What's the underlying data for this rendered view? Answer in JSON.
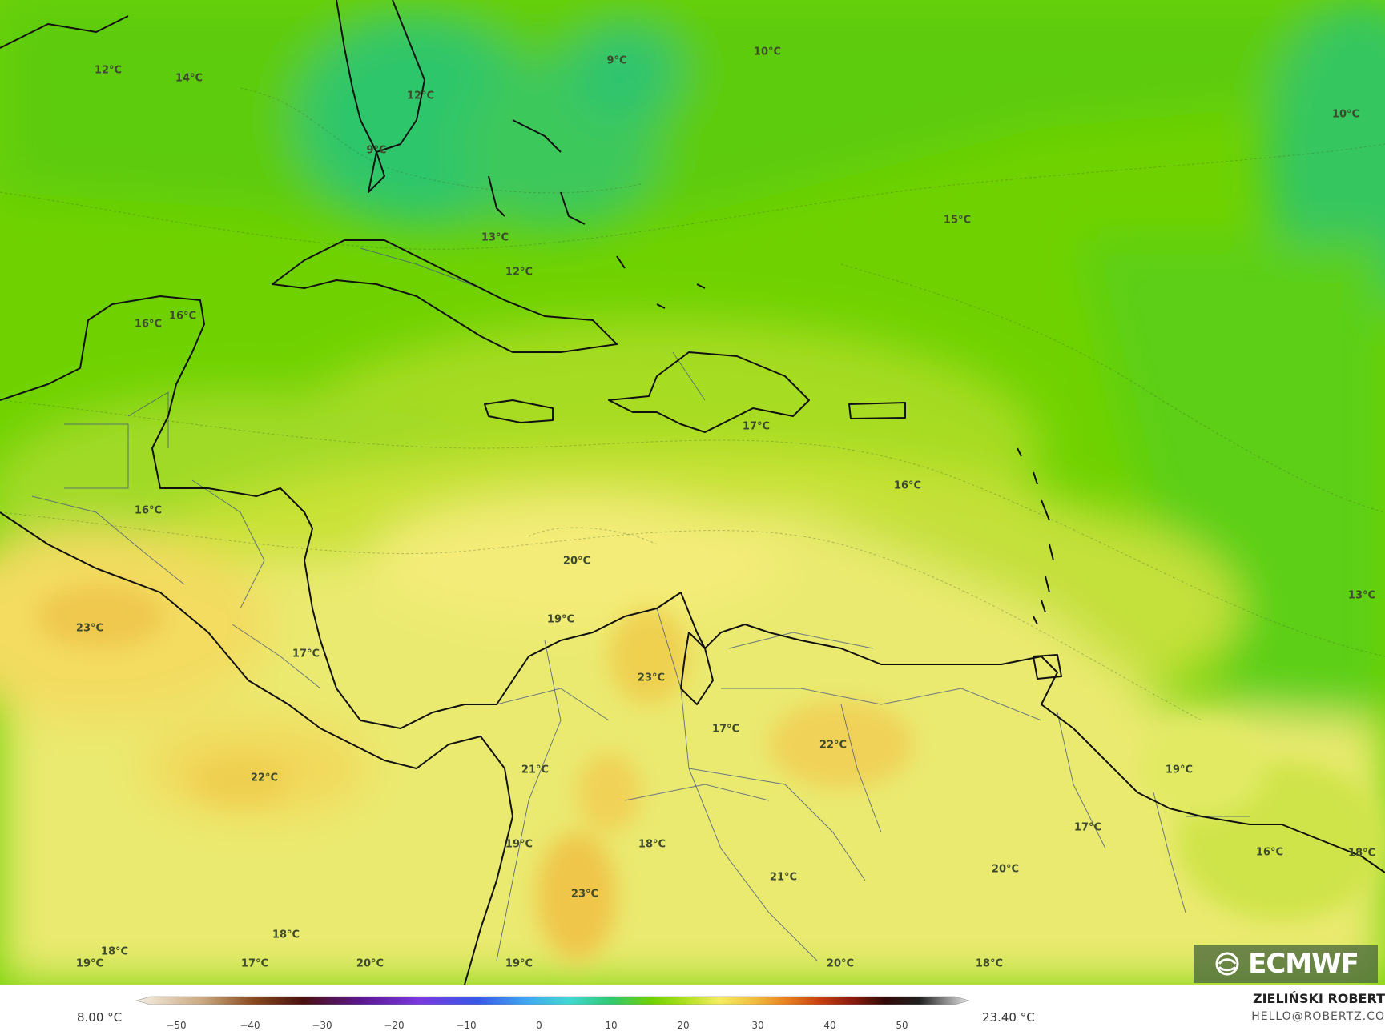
{
  "map": {
    "temperature_labels": [
      {
        "text": "12°C"
      },
      {
        "text": "14°C"
      },
      {
        "text": "9°C"
      },
      {
        "text": "12°C"
      },
      {
        "text": "9°C"
      },
      {
        "text": "10°C"
      },
      {
        "text": "10°C"
      },
      {
        "text": "13°C"
      },
      {
        "text": "12°C"
      },
      {
        "text": "15°C"
      },
      {
        "text": "16°C"
      },
      {
        "text": "16°C"
      },
      {
        "text": "17°C"
      },
      {
        "text": "16°C"
      },
      {
        "text": "16°C"
      },
      {
        "text": "20°C"
      },
      {
        "text": "19°C"
      },
      {
        "text": "23°C"
      },
      {
        "text": "17°C"
      },
      {
        "text": "23°C"
      },
      {
        "text": "17°C"
      },
      {
        "text": "22°C"
      },
      {
        "text": "13°C"
      },
      {
        "text": "22°C"
      },
      {
        "text": "21°C"
      },
      {
        "text": "19°C"
      },
      {
        "text": "19°C"
      },
      {
        "text": "18°C"
      },
      {
        "text": "17°C"
      },
      {
        "text": "16°C"
      },
      {
        "text": "18°C"
      },
      {
        "text": "21°C"
      },
      {
        "text": "20°C"
      },
      {
        "text": "23°C"
      },
      {
        "text": "18°C"
      },
      {
        "text": "18°C"
      },
      {
        "text": "19°C"
      },
      {
        "text": "20°C"
      },
      {
        "text": "20°C"
      },
      {
        "text": "17°C"
      },
      {
        "text": "19°C"
      },
      {
        "text": "18°C"
      }
    ],
    "colors": {
      "cold_teal": "#2ec66a",
      "green": "#66d000",
      "lime": "#a8dc20",
      "yellow_green": "#d4e43a",
      "pale_yellow": "#f4ec78",
      "warm_yellow": "#f2d85a",
      "orange_patch": "#f0c84a",
      "coastline": "#111111",
      "borders": "#4a5a80"
    }
  },
  "legend": {
    "min_label": "8.00 °C",
    "max_label": "23.40 °C",
    "ticks": [
      "−50",
      "−40",
      "−30",
      "−20",
      "−10",
      "0",
      "10",
      "20",
      "30",
      "40",
      "50"
    ]
  },
  "branding": {
    "logo_text": "ECMWF",
    "logo_icon": "ecmwf-swirl-icon",
    "author": "ZIELIŃSKI ROBERT",
    "email": "HELLO@ROBERTZ.CO"
  }
}
